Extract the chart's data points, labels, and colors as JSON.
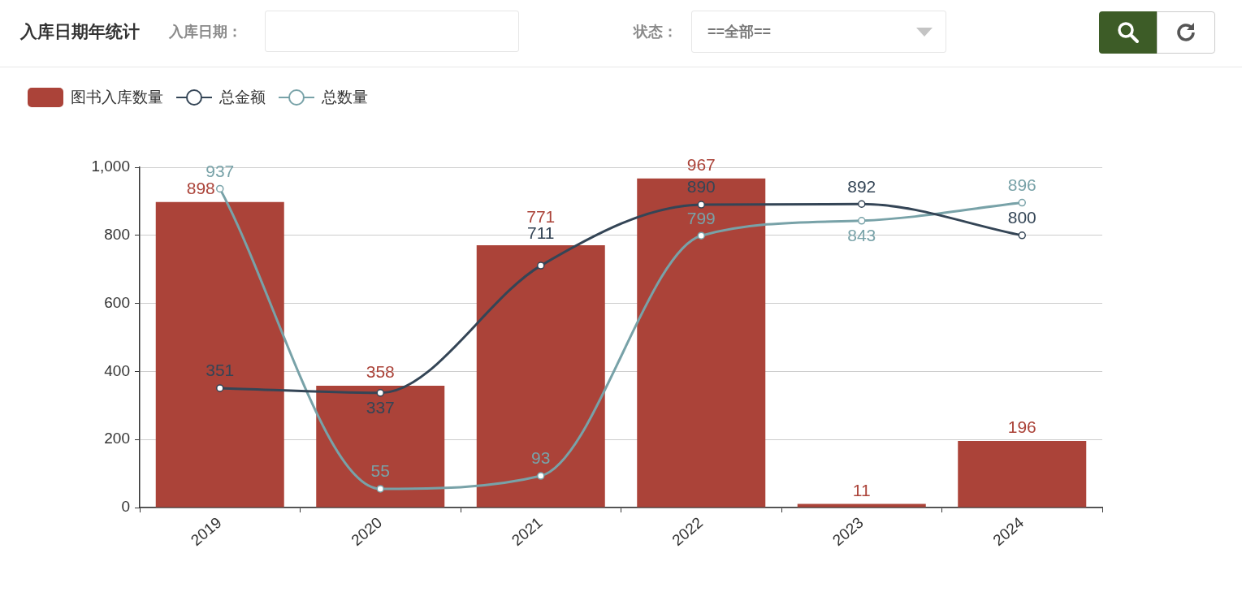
{
  "chart_data": {
    "type": "bar",
    "title": "入库日期年统计",
    "annotations": [
      "入库日期：",
      "状态：",
      "==全部=="
    ],
    "categories": [
      "2019",
      "2020",
      "2021",
      "2022",
      "2023",
      "2024"
    ],
    "series": [
      {
        "name": "图书入库数量",
        "color": "#ab4339",
        "values": [
          898,
          358,
          771,
          967,
          11,
          196
        ]
      },
      {
        "name": "总金额",
        "type": "line",
        "color": "#344556",
        "values": [
          351,
          337,
          711,
          890,
          892,
          800
        ]
      },
      {
        "name": "总数量",
        "type": "line",
        "color": "#78a2a8",
        "values": [
          937,
          55,
          93,
          799,
          843,
          896
        ]
      }
    ],
    "ylim": [
      0,
      1000
    ],
    "yticks": [
      0,
      200,
      400,
      600,
      800,
      {
        "value": 1000,
        "label": "1,000"
      }
    ],
    "grid": "y",
    "legend": "top left",
    "marker": "circle",
    "data_labels": true
  }
}
